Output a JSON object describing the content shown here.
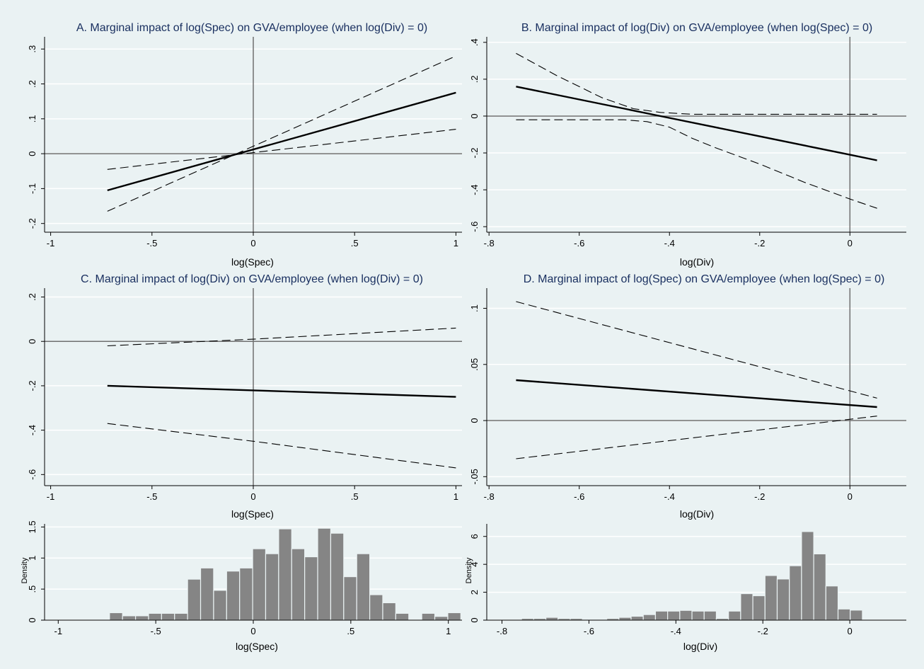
{
  "chart_data": [
    {
      "id": "A",
      "type": "line",
      "title": "A. Marginal impact of log(Spec) on GVA/employee (when log(Div) = 0)",
      "xlabel": "log(Spec)",
      "ylabel": "",
      "xlim": [
        -1.03,
        1.03
      ],
      "ylim": [
        -0.225,
        0.335
      ],
      "xticks": [
        -1,
        -0.5,
        0,
        0.5,
        1
      ],
      "xtick_labels": [
        "-1",
        "-.5",
        "0",
        ".5",
        "1"
      ],
      "yticks": [
        -0.2,
        -0.1,
        0,
        0.1,
        0.2,
        0.3
      ],
      "ytick_labels": [
        "-.2",
        "-.1",
        "0",
        ".1",
        ".2",
        ".3"
      ],
      "refline_x": 0,
      "refline_y": 0,
      "grid": true,
      "series": [
        {
          "style": "solid",
          "x": [
            -0.72,
            1
          ],
          "y": [
            -0.105,
            0.175
          ]
        },
        {
          "style": "dashed",
          "x": [
            -0.72,
            1
          ],
          "y": [
            -0.165,
            0.28
          ]
        },
        {
          "style": "dashed",
          "x": [
            -0.72,
            1
          ],
          "y": [
            -0.045,
            0.07
          ]
        }
      ]
    },
    {
      "id": "B",
      "type": "line",
      "title": "B. Marginal impact of log(Div) on GVA/employee (when log(Spec) = 0)",
      "xlabel": "log(Div)",
      "ylabel": "",
      "xlim": [
        -0.805,
        0.125
      ],
      "ylim": [
        -0.63,
        0.43
      ],
      "xticks": [
        -0.8,
        -0.6,
        -0.4,
        -0.2,
        0
      ],
      "xtick_labels": [
        "-.8",
        "-.6",
        "-.4",
        "-.2",
        "0"
      ],
      "yticks": [
        -0.6,
        -0.4,
        -0.2,
        0,
        0.2,
        0.4
      ],
      "ytick_labels": [
        "-.6",
        "-.4",
        "-.2",
        "0",
        ".2",
        ".4"
      ],
      "refline_x": 0,
      "refline_y": 0,
      "grid": true,
      "series": [
        {
          "style": "solid",
          "x": [
            -0.74,
            -0.6,
            -0.5,
            -0.42,
            -0.3,
            -0.2,
            -0.1,
            0,
            0.06
          ],
          "y": [
            0.16,
            0.09,
            0.04,
            0.0,
            -0.06,
            -0.11,
            -0.16,
            -0.21,
            -0.24
          ]
        },
        {
          "style": "dashed",
          "x": [
            -0.74,
            -0.65,
            -0.55,
            -0.48,
            -0.42,
            -0.35,
            -0.3,
            -0.2,
            -0.1,
            0,
            0.06
          ],
          "y": [
            0.34,
            0.22,
            0.1,
            0.04,
            0.02,
            0.01,
            0.01,
            0.01,
            0.01,
            0.01,
            0.01
          ]
        },
        {
          "style": "dashed",
          "x": [
            -0.74,
            -0.6,
            -0.5,
            -0.45,
            -0.4,
            -0.35,
            -0.3,
            -0.2,
            -0.1,
            0,
            0.06
          ],
          "y": [
            -0.02,
            -0.02,
            -0.02,
            -0.03,
            -0.06,
            -0.12,
            -0.17,
            -0.26,
            -0.36,
            -0.45,
            -0.5
          ]
        }
      ]
    },
    {
      "id": "C",
      "type": "line",
      "title": "C. Marginal impact of log(Div) on GVA/employee (when log(Div) = 0)",
      "xlabel": "log(Spec)",
      "ylabel": "",
      "xlim": [
        -1.03,
        1.03
      ],
      "ylim": [
        -0.65,
        0.24
      ],
      "xticks": [
        -1,
        -0.5,
        0,
        0.5,
        1
      ],
      "xtick_labels": [
        "-1",
        "-.5",
        "0",
        ".5",
        "1"
      ],
      "yticks": [
        -0.6,
        -0.4,
        -0.2,
        0,
        0.2
      ],
      "ytick_labels": [
        "-.6",
        "-.4",
        "-.2",
        "0",
        ".2"
      ],
      "refline_x": 0,
      "refline_y": 0,
      "grid": true,
      "series": [
        {
          "style": "solid",
          "x": [
            -0.72,
            1
          ],
          "y": [
            -0.2,
            -0.25
          ]
        },
        {
          "style": "dashed",
          "x": [
            -0.72,
            0,
            1
          ],
          "y": [
            -0.02,
            0.01,
            0.06
          ]
        },
        {
          "style": "dashed",
          "x": [
            -0.72,
            0,
            1
          ],
          "y": [
            -0.37,
            -0.45,
            -0.57
          ]
        }
      ]
    },
    {
      "id": "D",
      "type": "line",
      "title": "D. Marginal impact of log(Spec) on GVA/employee (when log(Spec) = 0)",
      "xlabel": "log(Div)",
      "ylabel": "",
      "xlim": [
        -0.805,
        0.125
      ],
      "ylim": [
        -0.058,
        0.118
      ],
      "xticks": [
        -0.8,
        -0.6,
        -0.4,
        -0.2,
        0
      ],
      "xtick_labels": [
        "-.8",
        "-.6",
        "-.4",
        "-.2",
        "0"
      ],
      "yticks": [
        -0.05,
        0,
        0.05,
        0.1
      ],
      "ytick_labels": [
        "-.05",
        "0",
        ".05",
        ".1"
      ],
      "refline_x": 0,
      "refline_y": 0,
      "grid": true,
      "series": [
        {
          "style": "solid",
          "x": [
            -0.74,
            0.06
          ],
          "y": [
            0.036,
            0.012
          ]
        },
        {
          "style": "dashed",
          "x": [
            -0.74,
            0.06
          ],
          "y": [
            0.106,
            0.02
          ]
        },
        {
          "style": "dashed",
          "x": [
            -0.74,
            0.06
          ],
          "y": [
            -0.034,
            0.004
          ]
        }
      ]
    },
    {
      "id": "E",
      "type": "bar",
      "title": "",
      "xlabel": "log(Spec)",
      "ylabel": "Density",
      "xlim": [
        -1.07,
        1.07
      ],
      "ylim": [
        0,
        1.55
      ],
      "xticks": [
        -1,
        -0.5,
        0,
        0.5,
        1
      ],
      "xtick_labels": [
        "-1",
        "-.5",
        "0",
        ".5",
        "1"
      ],
      "yticks": [
        0,
        0.5,
        1,
        1.5
      ],
      "ytick_labels": [
        "0",
        ".5",
        "1",
        "1.5"
      ],
      "grid": true,
      "bin_start": -0.737,
      "bin_width": 0.0667,
      "bin_gaps": [
        [
          -0.737,
          0.12
        ],
        [
          0.781,
          0.0
        ],
        [
          0.848,
          0.11
        ],
        [
          0.915,
          0.06
        ],
        [
          0.982,
          0.12
        ]
      ],
      "bins": [
        {
          "x0": -0.737,
          "v": 0.12
        },
        {
          "x0": -0.6703,
          "v": 0.07
        },
        {
          "x0": -0.6036,
          "v": 0.07
        },
        {
          "x0": -0.5369,
          "v": 0.11
        },
        {
          "x0": -0.4702,
          "v": 0.11
        },
        {
          "x0": -0.4035,
          "v": 0.11
        },
        {
          "x0": -0.3368,
          "v": 0.66
        },
        {
          "x0": -0.2701,
          "v": 0.84
        },
        {
          "x0": -0.2034,
          "v": 0.48
        },
        {
          "x0": -0.1367,
          "v": 0.79
        },
        {
          "x0": -0.07,
          "v": 0.84
        },
        {
          "x0": -0.0033,
          "v": 1.15
        },
        {
          "x0": 0.0634,
          "v": 1.07
        },
        {
          "x0": 0.1301,
          "v": 1.47
        },
        {
          "x0": 0.1968,
          "v": 1.15
        },
        {
          "x0": 0.2635,
          "v": 1.02
        },
        {
          "x0": 0.3302,
          "v": 1.48
        },
        {
          "x0": 0.3969,
          "v": 1.4
        },
        {
          "x0": 0.4636,
          "v": 0.7
        },
        {
          "x0": 0.5303,
          "v": 1.07
        },
        {
          "x0": 0.597,
          "v": 0.41
        },
        {
          "x0": 0.6637,
          "v": 0.28
        },
        {
          "x0": 0.7304,
          "v": 0.11
        },
        {
          "x0": 0.8638,
          "v": 0.11
        },
        {
          "x0": 0.9305,
          "v": 0.06
        },
        {
          "x0": 0.9972,
          "v": 0.12
        }
      ]
    },
    {
      "id": "F",
      "type": "bar",
      "title": "",
      "xlabel": "log(Div)",
      "ylabel": "Density",
      "xlim": [
        -0.835,
        0.13
      ],
      "ylim": [
        0,
        6.9
      ],
      "xticks": [
        -0.8,
        -0.6,
        -0.4,
        -0.2,
        0
      ],
      "xtick_labels": [
        "-.8",
        "-.6",
        "-.4",
        "-.2",
        "0"
      ],
      "yticks": [
        0,
        2,
        4,
        6
      ],
      "ytick_labels": [
        "0",
        "2",
        "4",
        "6"
      ],
      "grid": true,
      "bins": [
        {
          "x0": -0.755,
          "v": 0.12
        },
        {
          "x0": -0.727,
          "v": 0.12
        },
        {
          "x0": -0.699,
          "v": 0.2
        },
        {
          "x0": -0.671,
          "v": 0.12
        },
        {
          "x0": -0.643,
          "v": 0.12
        },
        {
          "x0": -0.615,
          "v": 0.05
        },
        {
          "x0": -0.587,
          "v": 0.05
        },
        {
          "x0": -0.559,
          "v": 0.12
        },
        {
          "x0": -0.531,
          "v": 0.2
        },
        {
          "x0": -0.503,
          "v": 0.28
        },
        {
          "x0": -0.475,
          "v": 0.4
        },
        {
          "x0": -0.447,
          "v": 0.65
        },
        {
          "x0": -0.419,
          "v": 0.65
        },
        {
          "x0": -0.391,
          "v": 0.7
        },
        {
          "x0": -0.363,
          "v": 0.65
        },
        {
          "x0": -0.335,
          "v": 0.65
        },
        {
          "x0": -0.307,
          "v": 0.12
        },
        {
          "x0": -0.279,
          "v": 0.65
        },
        {
          "x0": -0.251,
          "v": 1.9
        },
        {
          "x0": -0.223,
          "v": 1.75
        },
        {
          "x0": -0.195,
          "v": 3.2
        },
        {
          "x0": -0.167,
          "v": 2.95
        },
        {
          "x0": -0.139,
          "v": 3.9
        },
        {
          "x0": -0.111,
          "v": 6.35
        },
        {
          "x0": -0.083,
          "v": 4.75
        },
        {
          "x0": -0.055,
          "v": 2.45
        },
        {
          "x0": -0.027,
          "v": 0.8
        },
        {
          "x0": 0.001,
          "v": 0.72
        }
      ]
    }
  ]
}
